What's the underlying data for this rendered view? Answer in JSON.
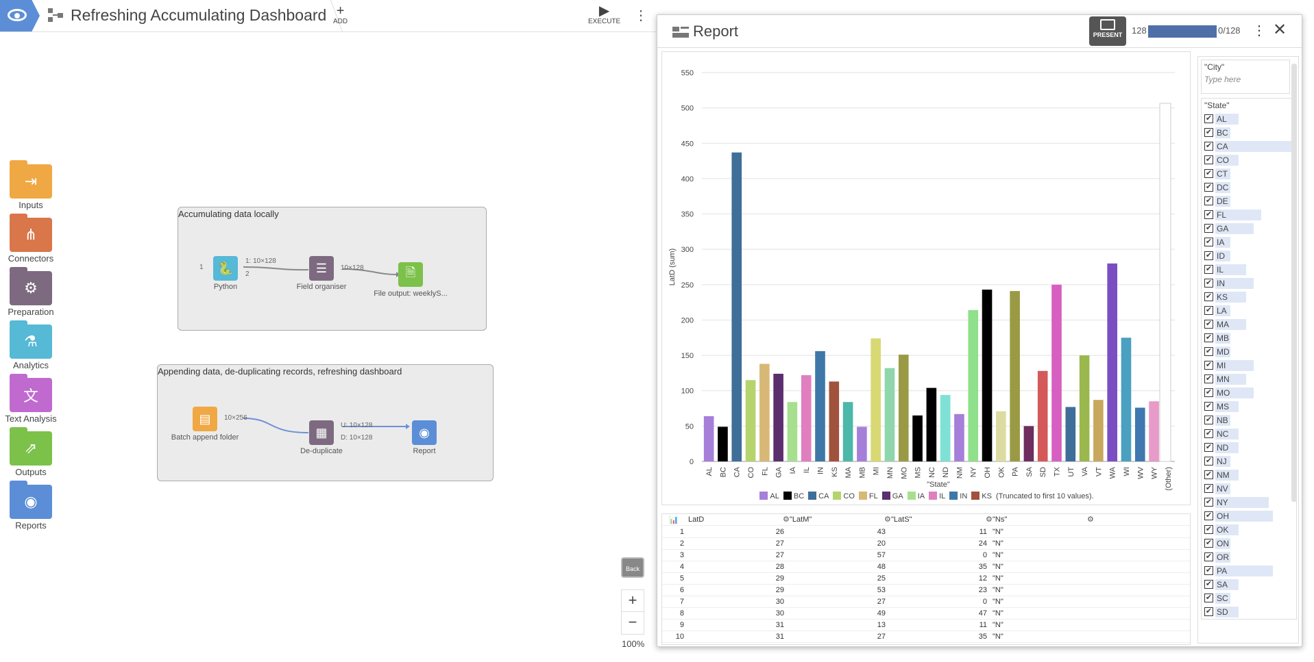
{
  "header": {
    "title": "Refreshing Accumulating Dashboard",
    "add_label": "ADD",
    "execute_label": "EXECUTE"
  },
  "sidebar": {
    "categories": [
      {
        "label": "Inputs",
        "color": "#f0a844",
        "icon": "input-icon"
      },
      {
        "label": "Connectors",
        "color": "#d9774a",
        "icon": "connectors-icon"
      },
      {
        "label": "Preparation",
        "color": "#7d6a80",
        "icon": "gear-icon"
      },
      {
        "label": "Analytics",
        "color": "#56b9d6",
        "icon": "flask-icon"
      },
      {
        "label": "Text Analysis",
        "color": "#c06ad0",
        "icon": "translate-icon"
      },
      {
        "label": "Outputs",
        "color": "#7cc14a",
        "icon": "export-icon"
      },
      {
        "label": "Reports",
        "color": "#5b8ed6",
        "icon": "eye-icon"
      }
    ]
  },
  "canvas": {
    "group1": {
      "title": "Accumulating data locally"
    },
    "group2": {
      "title": "Appending data, de-duplicating records, refreshing dashboard"
    },
    "nodes": {
      "python": {
        "label": "Python",
        "port_in": "1",
        "port_out1": "1: 10×128",
        "port_out2": "2"
      },
      "field_organiser": {
        "label": "Field organiser",
        "port_out": "10×128"
      },
      "file_output": {
        "label": "File output: weeklyS..."
      },
      "batch_append": {
        "label": "Batch append folder",
        "port_out": "10×256"
      },
      "deduplicate": {
        "label": "De-duplicate",
        "port_u": "U: 10×128",
        "port_d": "D: 10×128"
      },
      "report": {
        "label": "Report"
      }
    },
    "zoom": {
      "back_label": "Back",
      "zoom_in": "+",
      "zoom_out": "−",
      "level": "100%"
    }
  },
  "report": {
    "title": "Report",
    "present_label": "PRESENT",
    "progress_left": "128",
    "progress_right": "0/128",
    "progress_fraction": 1.0,
    "filters": {
      "city": {
        "title": "\"City\"",
        "placeholder": "Type here"
      },
      "state": {
        "title": "\"State\"",
        "items": [
          {
            "label": "AL",
            "bar": 0.3
          },
          {
            "label": "BC",
            "bar": 0.2
          },
          {
            "label": "CA",
            "bar": 1.0
          },
          {
            "label": "CO",
            "bar": 0.3
          },
          {
            "label": "CT",
            "bar": 0.2
          },
          {
            "label": "DC",
            "bar": 0.2
          },
          {
            "label": "DE",
            "bar": 0.2
          },
          {
            "label": "FL",
            "bar": 0.6
          },
          {
            "label": "GA",
            "bar": 0.5
          },
          {
            "label": "IA",
            "bar": 0.2
          },
          {
            "label": "ID",
            "bar": 0.2
          },
          {
            "label": "IL",
            "bar": 0.4
          },
          {
            "label": "IN",
            "bar": 0.5
          },
          {
            "label": "KS",
            "bar": 0.4
          },
          {
            "label": "LA",
            "bar": 0.2
          },
          {
            "label": "MA",
            "bar": 0.4
          },
          {
            "label": "MB",
            "bar": 0.2
          },
          {
            "label": "MD",
            "bar": 0.2
          },
          {
            "label": "MI",
            "bar": 0.5
          },
          {
            "label": "MN",
            "bar": 0.4
          },
          {
            "label": "MO",
            "bar": 0.5
          },
          {
            "label": "MS",
            "bar": 0.3
          },
          {
            "label": "NB",
            "bar": 0.2
          },
          {
            "label": "NC",
            "bar": 0.3
          },
          {
            "label": "ND",
            "bar": 0.3
          },
          {
            "label": "NJ",
            "bar": 0.2
          },
          {
            "label": "NM",
            "bar": 0.3
          },
          {
            "label": "NV",
            "bar": 0.2
          },
          {
            "label": "NY",
            "bar": 0.7
          },
          {
            "label": "OH",
            "bar": 0.75
          },
          {
            "label": "OK",
            "bar": 0.3
          },
          {
            "label": "ON",
            "bar": 0.2
          },
          {
            "label": "OR",
            "bar": 0.2
          },
          {
            "label": "PA",
            "bar": 0.75
          },
          {
            "label": "SA",
            "bar": 0.3
          },
          {
            "label": "SC",
            "bar": 0.2
          },
          {
            "label": "SD",
            "bar": 0.3
          }
        ]
      }
    },
    "table": {
      "headers": [
        "LatD",
        "\"LatM\"",
        "\"LatS\"",
        "\"Ns\""
      ],
      "rows": [
        [
          "1",
          "26",
          "43",
          "11",
          "\"N\""
        ],
        [
          "2",
          "27",
          "20",
          "24",
          "\"N\""
        ],
        [
          "3",
          "27",
          "57",
          "0",
          "\"N\""
        ],
        [
          "4",
          "28",
          "48",
          "35",
          "\"N\""
        ],
        [
          "5",
          "29",
          "25",
          "12",
          "\"N\""
        ],
        [
          "6",
          "29",
          "53",
          "23",
          "\"N\""
        ],
        [
          "7",
          "30",
          "27",
          "0",
          "\"N\""
        ],
        [
          "8",
          "30",
          "49",
          "47",
          "\"N\""
        ],
        [
          "9",
          "31",
          "13",
          "11",
          "\"N\""
        ],
        [
          "10",
          "31",
          "27",
          "35",
          "\"N\""
        ]
      ]
    }
  },
  "chart_data": {
    "type": "bar",
    "xlabel": "\"State\"",
    "ylabel": "LatD (sum)",
    "ylim": [
      0,
      550
    ],
    "yticks": [
      0,
      50,
      100,
      150,
      200,
      250,
      300,
      350,
      400,
      450,
      500,
      550
    ],
    "grid": true,
    "legend_note": "(Truncated to first 10 values).",
    "categories": [
      "AL",
      "BC",
      "CA",
      "CO",
      "FL",
      "GA",
      "IA",
      "IL",
      "IN",
      "KS",
      "MA",
      "MB",
      "MI",
      "MN",
      "MO",
      "MS",
      "NC",
      "ND",
      "NM",
      "NY",
      "OH",
      "OK",
      "PA",
      "SA",
      "SD",
      "TX",
      "UT",
      "VA",
      "VT",
      "WA",
      "WI",
      "WV",
      "WY",
      "(Other)"
    ],
    "values": [
      64,
      49,
      437,
      115,
      138,
      124,
      84,
      122,
      156,
      113,
      84,
      49,
      174,
      132,
      151,
      65,
      104,
      94,
      67,
      214,
      243,
      71,
      241,
      50,
      128,
      250,
      77,
      150,
      87,
      280,
      175,
      76,
      85,
      0
    ],
    "colors": [
      "#a57fd9",
      "#000000",
      "#3f6e99",
      "#b5d46e",
      "#d8b876",
      "#5b2e6e",
      "#a6e08e",
      "#e07fbf",
      "#3e78a8",
      "#a0523d",
      "#4bb8a9",
      "#a57fd9",
      "#d8d874",
      "#8fd6ac",
      "#9a9a44",
      "#000000",
      "#000000",
      "#7fe0d6",
      "#a57fd9",
      "#8fe08a",
      "#000000",
      "#dcdca2",
      "#9a9a44",
      "#6e2e5e",
      "#d45a5a",
      "#d75fc1",
      "#3f6e99",
      "#9ab84e",
      "#c8a85e",
      "#7a4ec2",
      "#4aa0c0",
      "#3f78b0",
      "#e89ac8",
      "#ffffff"
    ],
    "legend": [
      {
        "name": "AL",
        "color": "#a57fd9"
      },
      {
        "name": "BC",
        "color": "#000000"
      },
      {
        "name": "CA",
        "color": "#3f6e99"
      },
      {
        "name": "CO",
        "color": "#b5d46e"
      },
      {
        "name": "FL",
        "color": "#d8b876"
      },
      {
        "name": "GA",
        "color": "#5b2e6e"
      },
      {
        "name": "IA",
        "color": "#a6e08e"
      },
      {
        "name": "IL",
        "color": "#e07fbf"
      },
      {
        "name": "IN",
        "color": "#3e78a8"
      },
      {
        "name": "KS",
        "color": "#a0523d"
      }
    ]
  }
}
